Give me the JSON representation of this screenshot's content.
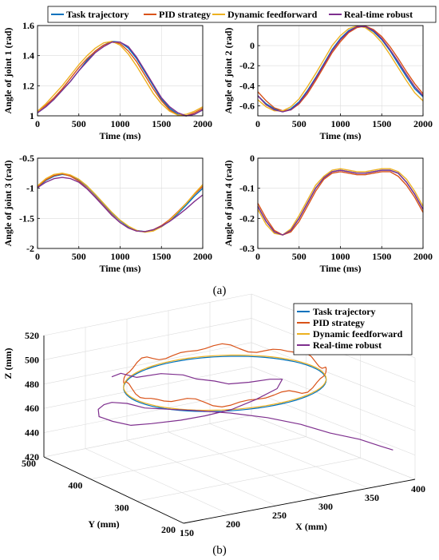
{
  "colors": {
    "task": "#0072BD",
    "pid": "#D95319",
    "dff": "#EDB120",
    "rtr": "#7E2F8E",
    "grid": "#dcdcdc",
    "axis": "#000000"
  },
  "legend_top": [
    "Task trajectory",
    "PID strategy",
    "Dynamic feedforward",
    "Real-time robust"
  ],
  "panel_labels": {
    "a": "(a)",
    "b": "(b)"
  },
  "chart_data": [
    {
      "type": "line",
      "id": "joint1",
      "xlabel": "Time (ms)",
      "ylabel": "Angle of joint 1 (rad)",
      "xlim": [
        0,
        2000
      ],
      "ylim": [
        1,
        1.6
      ],
      "xticks": [
        0,
        500,
        1000,
        1500,
        2000
      ],
      "yticks": [
        1,
        1.2,
        1.4,
        1.6
      ],
      "ytick_labels": [
        "1",
        "1.2",
        "1.4",
        "1.6"
      ],
      "x": [
        0,
        100,
        200,
        300,
        400,
        500,
        600,
        700,
        800,
        900,
        1000,
        1100,
        1200,
        1300,
        1400,
        1500,
        1600,
        1700,
        1800,
        1900,
        2000
      ],
      "series": [
        {
          "name": "Task trajectory",
          "values": [
            1.02,
            1.06,
            1.11,
            1.17,
            1.23,
            1.3,
            1.37,
            1.43,
            1.47,
            1.495,
            1.49,
            1.45,
            1.38,
            1.29,
            1.2,
            1.11,
            1.05,
            1.01,
            1.0,
            1.01,
            1.04
          ]
        },
        {
          "name": "PID strategy",
          "values": [
            1.03,
            1.07,
            1.12,
            1.18,
            1.25,
            1.32,
            1.38,
            1.43,
            1.47,
            1.49,
            1.48,
            1.43,
            1.36,
            1.27,
            1.18,
            1.1,
            1.04,
            1.005,
            1.0,
            1.02,
            1.05
          ]
        },
        {
          "name": "Dynamic feedforward",
          "values": [
            1.03,
            1.08,
            1.14,
            1.2,
            1.27,
            1.34,
            1.4,
            1.45,
            1.485,
            1.495,
            1.47,
            1.41,
            1.33,
            1.24,
            1.15,
            1.08,
            1.03,
            1.005,
            1.01,
            1.03,
            1.06
          ]
        },
        {
          "name": "Real-time robust",
          "values": [
            1.02,
            1.06,
            1.11,
            1.17,
            1.23,
            1.3,
            1.36,
            1.42,
            1.46,
            1.49,
            1.49,
            1.46,
            1.39,
            1.3,
            1.21,
            1.12,
            1.06,
            1.02,
            1.0,
            1.01,
            1.04
          ]
        }
      ]
    },
    {
      "type": "line",
      "id": "joint2",
      "xlabel": "Time (ms)",
      "ylabel": "Angle of joint 2 (rad)",
      "xlim": [
        0,
        2000
      ],
      "ylim": [
        -0.7,
        0.2
      ],
      "xticks": [
        0,
        500,
        1000,
        1500,
        2000
      ],
      "yticks": [
        -0.6,
        -0.4,
        -0.2,
        0
      ],
      "ytick_labels": [
        "-0.6",
        "-0.4",
        "-0.2",
        "0"
      ],
      "x": [
        0,
        100,
        200,
        300,
        400,
        500,
        600,
        700,
        800,
        900,
        1000,
        1100,
        1200,
        1300,
        1400,
        1500,
        1600,
        1700,
        1800,
        1900,
        2000
      ],
      "series": [
        {
          "name": "Task trajectory",
          "values": [
            -0.5,
            -0.58,
            -0.63,
            -0.66,
            -0.63,
            -0.56,
            -0.45,
            -0.32,
            -0.18,
            -0.04,
            0.07,
            0.15,
            0.19,
            0.19,
            0.14,
            0.06,
            -0.05,
            -0.18,
            -0.31,
            -0.43,
            -0.51
          ]
        },
        {
          "name": "PID strategy",
          "values": [
            -0.46,
            -0.55,
            -0.62,
            -0.65,
            -0.64,
            -0.58,
            -0.48,
            -0.35,
            -0.21,
            -0.07,
            0.04,
            0.13,
            0.18,
            0.195,
            0.16,
            0.09,
            -0.01,
            -0.13,
            -0.26,
            -0.38,
            -0.48
          ]
        },
        {
          "name": "Dynamic feedforward",
          "values": [
            -0.54,
            -0.61,
            -0.65,
            -0.65,
            -0.61,
            -0.53,
            -0.41,
            -0.28,
            -0.14,
            0.0,
            0.1,
            0.17,
            0.195,
            0.18,
            0.12,
            0.03,
            -0.09,
            -0.22,
            -0.35,
            -0.47,
            -0.55
          ]
        },
        {
          "name": "Real-time robust",
          "values": [
            -0.5,
            -0.59,
            -0.64,
            -0.66,
            -0.64,
            -0.57,
            -0.46,
            -0.33,
            -0.19,
            -0.05,
            0.06,
            0.14,
            0.19,
            0.19,
            0.15,
            0.07,
            -0.04,
            -0.16,
            -0.29,
            -0.41,
            -0.5
          ]
        }
      ]
    },
    {
      "type": "line",
      "id": "joint3",
      "xlabel": "Time (ms)",
      "ylabel": "Angle of joint 3 (rad)",
      "xlim": [
        0,
        2000
      ],
      "ylim": [
        -2,
        -0.5
      ],
      "xticks": [
        0,
        500,
        1000,
        1500,
        2000
      ],
      "yticks": [
        -2,
        -1.5,
        -1,
        -0.5
      ],
      "ytick_labels": [
        "-2",
        "-1.5",
        "-1",
        "-0.5"
      ],
      "x": [
        0,
        100,
        200,
        300,
        400,
        500,
        600,
        700,
        800,
        900,
        1000,
        1100,
        1200,
        1300,
        1400,
        1500,
        1600,
        1700,
        1800,
        1900,
        2000
      ],
      "series": [
        {
          "name": "Task trajectory",
          "values": [
            -0.98,
            -0.87,
            -0.8,
            -0.77,
            -0.79,
            -0.86,
            -0.97,
            -1.11,
            -1.26,
            -1.41,
            -1.54,
            -1.64,
            -1.7,
            -1.72,
            -1.7,
            -1.64,
            -1.54,
            -1.42,
            -1.28,
            -1.13,
            -1.0
          ]
        },
        {
          "name": "PID strategy",
          "values": [
            -0.97,
            -0.86,
            -0.79,
            -0.76,
            -0.8,
            -0.88,
            -1.0,
            -1.14,
            -1.29,
            -1.44,
            -1.57,
            -1.66,
            -1.71,
            -1.72,
            -1.69,
            -1.62,
            -1.52,
            -1.39,
            -1.25,
            -1.1,
            -0.97
          ]
        },
        {
          "name": "Dynamic feedforward",
          "values": [
            -0.96,
            -0.84,
            -0.77,
            -0.75,
            -0.78,
            -0.85,
            -0.96,
            -1.1,
            -1.25,
            -1.4,
            -1.53,
            -1.63,
            -1.7,
            -1.73,
            -1.71,
            -1.64,
            -1.53,
            -1.4,
            -1.25,
            -1.09,
            -0.94
          ]
        },
        {
          "name": "Real-time robust",
          "values": [
            -0.99,
            -0.9,
            -0.84,
            -0.82,
            -0.84,
            -0.9,
            -1.01,
            -1.15,
            -1.3,
            -1.45,
            -1.57,
            -1.66,
            -1.71,
            -1.72,
            -1.69,
            -1.63,
            -1.55,
            -1.45,
            -1.34,
            -1.22,
            -1.11
          ]
        }
      ]
    },
    {
      "type": "line",
      "id": "joint4",
      "xlabel": "Time (ms)",
      "ylabel": "Angle of joint 4 (rad)",
      "xlim": [
        0,
        2000
      ],
      "ylim": [
        -0.3,
        0
      ],
      "xticks": [
        0,
        500,
        1000,
        1500,
        2000
      ],
      "yticks": [
        -0.3,
        -0.2,
        -0.1,
        0
      ],
      "ytick_labels": [
        "-0.3",
        "-0.2",
        "-0.1",
        "0"
      ],
      "x": [
        0,
        100,
        200,
        300,
        400,
        500,
        600,
        700,
        800,
        900,
        1000,
        1100,
        1200,
        1300,
        1400,
        1500,
        1600,
        1700,
        1800,
        1900,
        2000
      ],
      "series": [
        {
          "name": "Task trajectory",
          "values": [
            -0.16,
            -0.21,
            -0.245,
            -0.255,
            -0.24,
            -0.2,
            -0.15,
            -0.1,
            -0.065,
            -0.045,
            -0.04,
            -0.045,
            -0.05,
            -0.05,
            -0.045,
            -0.04,
            -0.04,
            -0.05,
            -0.08,
            -0.12,
            -0.17
          ]
        },
        {
          "name": "PID strategy",
          "values": [
            -0.15,
            -0.2,
            -0.24,
            -0.255,
            -0.245,
            -0.21,
            -0.16,
            -0.11,
            -0.07,
            -0.05,
            -0.045,
            -0.05,
            -0.055,
            -0.055,
            -0.05,
            -0.045,
            -0.045,
            -0.06,
            -0.09,
            -0.13,
            -0.18
          ]
        },
        {
          "name": "Dynamic feedforward",
          "values": [
            -0.17,
            -0.22,
            -0.25,
            -0.255,
            -0.235,
            -0.19,
            -0.14,
            -0.09,
            -0.06,
            -0.04,
            -0.035,
            -0.04,
            -0.045,
            -0.045,
            -0.04,
            -0.035,
            -0.035,
            -0.045,
            -0.07,
            -0.11,
            -0.16
          ]
        },
        {
          "name": "Real-time robust",
          "values": [
            -0.16,
            -0.21,
            -0.245,
            -0.255,
            -0.24,
            -0.2,
            -0.15,
            -0.1,
            -0.065,
            -0.045,
            -0.04,
            -0.045,
            -0.05,
            -0.05,
            -0.045,
            -0.04,
            -0.04,
            -0.05,
            -0.08,
            -0.12,
            -0.17
          ]
        }
      ]
    },
    {
      "type": "line",
      "id": "task3d",
      "xlabel": "X (mm)",
      "ylabel": "Y (mm)",
      "zlabel": "Z (mm)",
      "xlim": [
        150,
        400
      ],
      "ylim": [
        200,
        500
      ],
      "zlim": [
        420,
        520
      ],
      "xticks": [
        150,
        200,
        250,
        300,
        350,
        400
      ],
      "yticks": [
        200,
        300,
        400,
        500
      ],
      "zticks": [
        420,
        440,
        460,
        480,
        500,
        520
      ],
      "legend": [
        "Task trajectory",
        "PID strategy",
        "Dynamic feedforward",
        "Real-time robust"
      ],
      "legend_position": "top-right",
      "series": [
        {
          "name": "Task trajectory",
          "shape": "circle",
          "center": [
            275,
            350,
            490
          ],
          "radius": 100
        },
        {
          "name": "PID strategy",
          "shape": "circle",
          "center": [
            275,
            350,
            497
          ],
          "radius": 100,
          "jitter": 4
        },
        {
          "name": "Dynamic feedforward",
          "shape": "circle",
          "center": [
            275,
            350,
            491
          ],
          "radius": 100
        },
        {
          "name": "Real-time robust",
          "x": [
            220,
            225,
            235,
            255,
            275,
            285,
            300,
            310,
            325,
            340,
            345,
            330,
            300,
            270,
            240,
            215,
            190,
            175,
            165,
            160,
            170,
            185,
            200,
            215,
            230,
            250,
            275,
            300,
            325,
            345,
            360,
            375,
            380,
            382
          ],
          "y": [
            480,
            470,
            455,
            440,
            430,
            420,
            410,
            400,
            385,
            370,
            355,
            340,
            330,
            325,
            325,
            330,
            345,
            360,
            380,
            400,
            420,
            435,
            445,
            440,
            430,
            420,
            405,
            380,
            350,
            320,
            290,
            260,
            230,
            210
          ],
          "z": [
            480,
            484,
            482,
            485,
            483,
            480,
            478,
            476,
            478,
            481,
            483,
            480,
            477,
            474,
            473,
            472,
            470,
            468,
            469,
            470,
            471,
            470,
            468,
            466,
            462,
            460,
            458,
            457,
            455,
            452,
            448,
            446,
            445,
            445
          ]
        }
      ]
    }
  ]
}
